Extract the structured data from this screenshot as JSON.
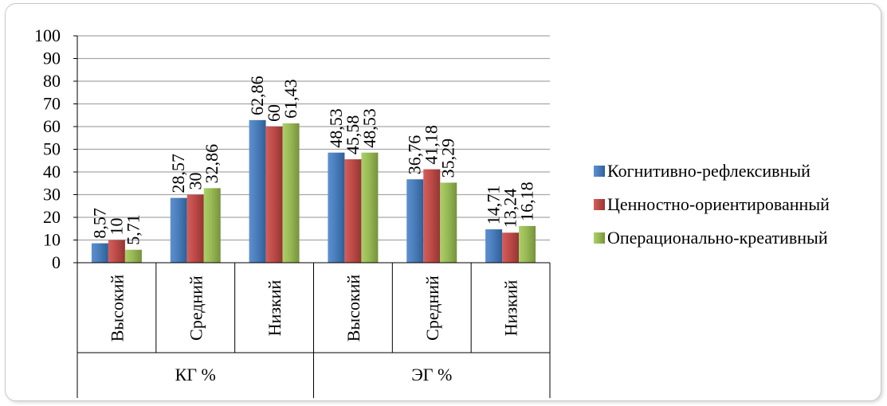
{
  "chart_data": {
    "type": "bar",
    "categories": [
      "Высокий",
      "Средний",
      "Низкий",
      "Высокий",
      "Средний",
      "Низкий"
    ],
    "groups": [
      {
        "label": "КГ %",
        "span": 3
      },
      {
        "label": "ЭГ %",
        "span": 3
      }
    ],
    "series": [
      {
        "name": "Когнитивно-рефлексивный",
        "color": "#4a7ebb",
        "values": [
          8.57,
          28.57,
          62.86,
          48.53,
          36.76,
          14.71
        ],
        "labels": [
          "8,57",
          "28,57",
          "62,86",
          "48,53",
          "36,76",
          "14,71"
        ]
      },
      {
        "name": "Ценностно-ориентированный",
        "color": "#be4b48",
        "values": [
          10,
          30,
          60,
          45.58,
          41.18,
          13.24
        ],
        "labels": [
          "10",
          "30",
          "60",
          "45,58",
          "41,18",
          "13,24"
        ]
      },
      {
        "name": "Операционально-креативный",
        "color": "#98b954",
        "values": [
          5.71,
          32.86,
          61.43,
          48.53,
          35.29,
          16.18
        ],
        "labels": [
          "5,71",
          "32,86",
          "61,43",
          "48,53",
          "35,29",
          "16,18"
        ]
      }
    ],
    "yticks": [
      "0",
      "10",
      "20",
      "30",
      "40",
      "50",
      "60",
      "70",
      "80",
      "90",
      "100"
    ],
    "ylim": [
      0,
      100
    ],
    "grid": true,
    "legend_position": "right"
  }
}
